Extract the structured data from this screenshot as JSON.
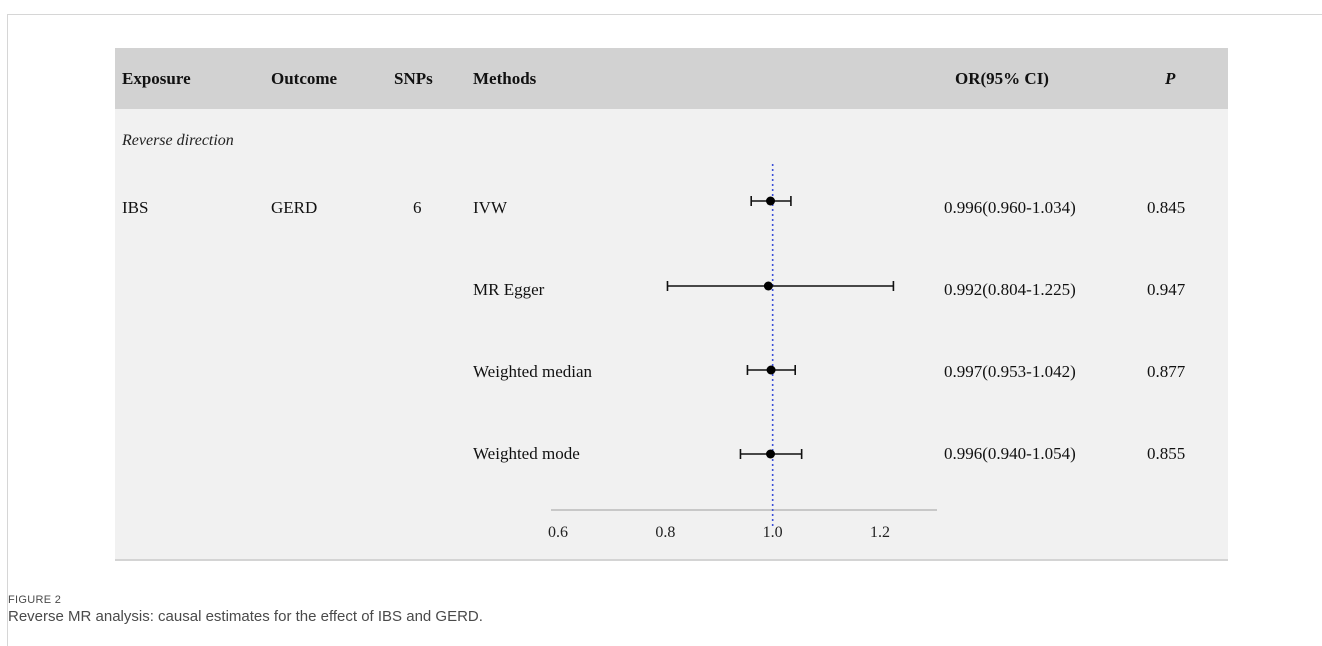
{
  "table": {
    "headers": {
      "exposure": "Exposure",
      "outcome": "Outcome",
      "snps": "SNPs",
      "methods": "Methods",
      "or_ci": "OR(95% CI)",
      "p": "P"
    },
    "section_label": "Reverse direction",
    "group": {
      "exposure": "IBS",
      "outcome": "GERD",
      "snps": "6"
    },
    "rows": [
      {
        "method": "IVW",
        "or_ci": "0.996(0.960-1.034)",
        "p": "0.845"
      },
      {
        "method": "MR Egger",
        "or_ci": "0.992(0.804-1.225)",
        "p": "0.947"
      },
      {
        "method": "Weighted median",
        "or_ci": "0.997(0.953-1.042)",
        "p": "0.877"
      },
      {
        "method": "Weighted mode",
        "or_ci": "0.996(0.940-1.054)",
        "p": "0.855"
      }
    ]
  },
  "chart_data": {
    "type": "forest",
    "categories": [
      "IVW",
      "MR Egger",
      "Weighted median",
      "Weighted mode"
    ],
    "series": [
      {
        "estimate": [
          0.996,
          0.992,
          0.997,
          0.996
        ],
        "lower": [
          0.96,
          0.804,
          0.953,
          0.94
        ],
        "upper": [
          1.034,
          1.225,
          1.042,
          1.054
        ]
      }
    ],
    "xticks": [
      "0.6",
      "0.8",
      "1.0",
      "1.2"
    ],
    "xlim": [
      0.6,
      1.2
    ],
    "reference_line": 1.0,
    "reference_line_color": "#3b4fd8",
    "grid": false
  },
  "caption": {
    "label": "FIGURE 2",
    "text": "Reverse MR analysis: causal estimates for the effect of IBS and GERD."
  }
}
